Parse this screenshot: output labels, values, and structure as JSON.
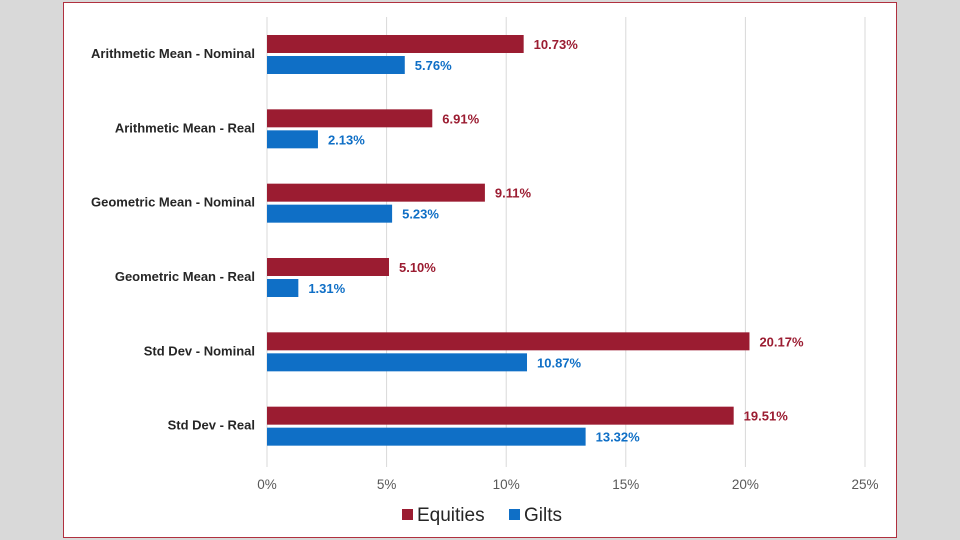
{
  "chart_data": {
    "type": "bar",
    "orientation": "horizontal",
    "categories": [
      "Arithmetic Mean - Nominal",
      "Arithmetic Mean - Real",
      "Geometric Mean - Nominal",
      "Geometric Mean - Real",
      "Std Dev - Nominal",
      "Std Dev - Real"
    ],
    "series": [
      {
        "name": "Equities",
        "color": "#9b1c31",
        "values": [
          10.73,
          6.91,
          9.11,
          5.1,
          20.17,
          19.51
        ],
        "labels": [
          "10.73%",
          "6.91%",
          "9.11%",
          "5.10%",
          "20.17%",
          "19.51%"
        ]
      },
      {
        "name": "Gilts",
        "color": "#0f6fc6",
        "values": [
          5.76,
          2.13,
          5.23,
          1.31,
          10.87,
          13.32
        ],
        "labels": [
          "5.76%",
          "2.13%",
          "5.23%",
          "1.31%",
          "10.87%",
          "13.32%"
        ]
      }
    ],
    "xlim": [
      0,
      25
    ],
    "xticks": [
      0,
      5,
      10,
      15,
      20,
      25
    ],
    "xtick_labels": [
      "0%",
      "5%",
      "10%",
      "15%",
      "20%",
      "25%"
    ],
    "title": "",
    "xlabel": "",
    "ylabel": "",
    "grid": "vertical",
    "legend_position": "bottom"
  }
}
